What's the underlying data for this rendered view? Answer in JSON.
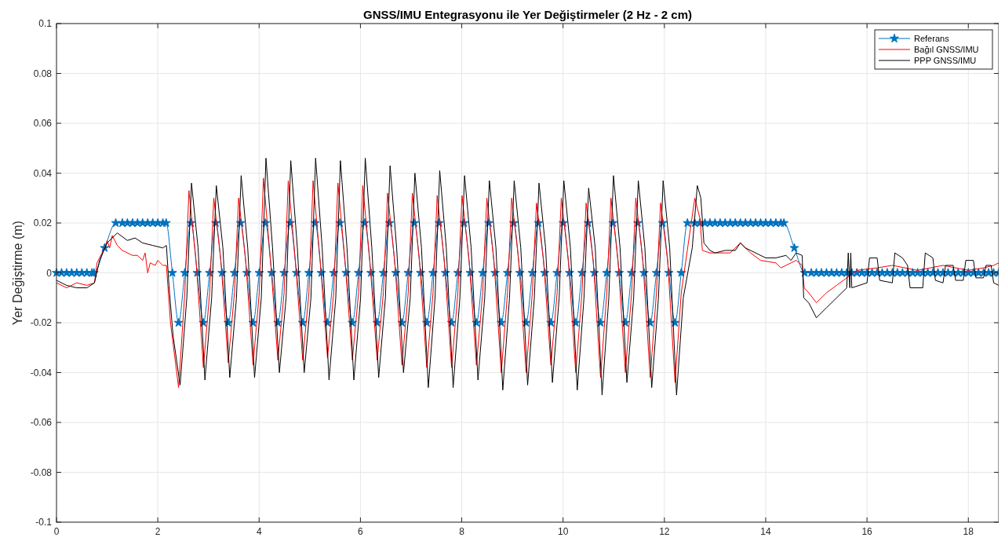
{
  "chart_data": {
    "type": "line",
    "title": "GNSS/IMU Entegrasyonu ile Yer Değiştirmeler (2 Hz - 2 cm)",
    "ylabel": "Yer Değiştirme (m)",
    "xlim": [
      0,
      18.6
    ],
    "ylim": [
      -0.1,
      0.1
    ],
    "xticks": [
      0,
      2,
      4,
      6,
      8,
      10,
      12,
      14,
      16,
      18
    ],
    "yticks": [
      -0.1,
      -0.08,
      -0.06,
      -0.04,
      -0.02,
      0,
      0.02,
      0.04,
      0.06,
      0.08,
      0.1
    ],
    "grid": true,
    "legend": "top right",
    "series": [
      {
        "name": "Referans",
        "color": "#0072bd",
        "marker": "star",
        "x": [
          0,
          0.1,
          0.2,
          0.3,
          0.4,
          0.5,
          0.6,
          0.7,
          0.74,
          0.95,
          1.17,
          1.3,
          1.4,
          1.5,
          1.6,
          1.7,
          1.8,
          1.9,
          2.0,
          2.1,
          2.165,
          2.288,
          2.41,
          2.533,
          2.655,
          2.778,
          2.9,
          3.023,
          3.145,
          3.268,
          3.39,
          3.513,
          3.635,
          3.758,
          3.88,
          4.003,
          4.125,
          4.248,
          4.37,
          4.493,
          4.615,
          4.738,
          4.86,
          4.983,
          5.105,
          5.228,
          5.35,
          5.473,
          5.595,
          5.718,
          5.84,
          5.963,
          6.085,
          6.208,
          6.33,
          6.453,
          6.575,
          6.698,
          6.82,
          6.943,
          7.065,
          7.188,
          7.31,
          7.433,
          7.555,
          7.678,
          7.8,
          7.923,
          8.045,
          8.168,
          8.29,
          8.413,
          8.535,
          8.658,
          8.78,
          8.903,
          9.025,
          9.148,
          9.27,
          9.393,
          9.515,
          9.638,
          9.76,
          9.883,
          10.005,
          10.128,
          10.25,
          10.373,
          10.495,
          10.618,
          10.74,
          10.863,
          10.985,
          11.108,
          11.23,
          11.353,
          11.475,
          11.598,
          11.72,
          11.843,
          11.965,
          12.088,
          12.21,
          12.333,
          12.455,
          12.6,
          12.7,
          12.8,
          12.9,
          13.0,
          13.1,
          13.2,
          13.3,
          13.4,
          13.5,
          13.6,
          13.7,
          13.8,
          13.9,
          14.0,
          14.1,
          14.2,
          14.3,
          14.36,
          14.565,
          14.77,
          14.9,
          15.0,
          15.1,
          15.2,
          15.3,
          15.4,
          15.5,
          15.6,
          15.7,
          15.8,
          15.9,
          16.0,
          16.1,
          16.2,
          16.3,
          16.4,
          16.5,
          16.6,
          16.7,
          16.8,
          16.9,
          17.0,
          17.1,
          17.2,
          17.3,
          17.4,
          17.5,
          17.6,
          17.7,
          17.8,
          17.9,
          18.0,
          18.1,
          18.2,
          18.3,
          18.4,
          18.5,
          18.6
        ],
        "values": [
          0,
          0,
          0,
          0,
          0,
          0,
          0,
          0,
          0,
          0.01,
          0.02,
          0.02,
          0.02,
          0.02,
          0.02,
          0.02,
          0.02,
          0.02,
          0.02,
          0.02,
          0.02,
          0,
          -0.02,
          0,
          0.02,
          0,
          -0.02,
          0,
          0.02,
          0,
          -0.02,
          0,
          0.02,
          0,
          -0.02,
          0,
          0.02,
          0,
          -0.02,
          0,
          0.02,
          0,
          -0.02,
          0,
          0.02,
          0,
          -0.02,
          0,
          0.02,
          0,
          -0.02,
          0,
          0.02,
          0,
          -0.02,
          0,
          0.02,
          0,
          -0.02,
          0,
          0.02,
          0,
          -0.02,
          0,
          0.02,
          0,
          -0.02,
          0,
          0.02,
          0,
          -0.02,
          0,
          0.02,
          0,
          -0.02,
          0,
          0.02,
          0,
          -0.02,
          0,
          0.02,
          0,
          -0.02,
          0,
          0.02,
          0,
          -0.02,
          0,
          0.02,
          0,
          -0.02,
          0,
          0.02,
          0,
          -0.02,
          0,
          0.02,
          0,
          -0.02,
          0,
          0.02,
          0,
          -0.02,
          0,
          0.02,
          0.02,
          0.02,
          0.02,
          0.02,
          0.02,
          0.02,
          0.02,
          0.02,
          0.02,
          0.02,
          0.02,
          0.02,
          0.02,
          0.02,
          0.02,
          0.02,
          0.02,
          0.02,
          0.02,
          0.01,
          0,
          0,
          0,
          0,
          0,
          0,
          0,
          0,
          0,
          0,
          0,
          0,
          0,
          0,
          0,
          0,
          0,
          0,
          0,
          0,
          0,
          0,
          0,
          0,
          0,
          0,
          0,
          0,
          0,
          0,
          0,
          0,
          0,
          0,
          0,
          0,
          0,
          0,
          0
        ]
      },
      {
        "name": "Bağıl GNSS/IMU",
        "color": "#ff0000",
        "x": [
          0,
          0.2,
          0.4,
          0.6,
          0.75,
          0.8,
          0.95,
          1.0,
          1.05,
          1.1,
          1.2,
          1.3,
          1.5,
          1.6,
          1.7,
          1.75,
          1.8,
          1.85,
          1.95,
          2.0,
          2.1,
          2.17,
          2.25,
          2.41,
          2.533,
          2.615,
          2.755,
          2.9,
          3.023,
          3.105,
          3.245,
          3.39,
          3.513,
          3.595,
          3.735,
          3.88,
          4.003,
          4.085,
          4.225,
          4.37,
          4.493,
          4.575,
          4.715,
          4.86,
          4.983,
          5.065,
          5.205,
          5.35,
          5.473,
          5.555,
          5.695,
          5.84,
          5.963,
          6.045,
          6.185,
          6.33,
          6.453,
          6.535,
          6.675,
          6.82,
          6.943,
          7.025,
          7.165,
          7.31,
          7.433,
          7.515,
          7.655,
          7.8,
          7.923,
          8.005,
          8.145,
          8.29,
          8.413,
          8.495,
          8.635,
          8.78,
          8.903,
          8.985,
          9.125,
          9.27,
          9.393,
          9.475,
          9.615,
          9.76,
          9.883,
          9.965,
          10.105,
          10.25,
          10.373,
          10.455,
          10.595,
          10.74,
          10.863,
          10.945,
          11.085,
          11.23,
          11.353,
          11.435,
          11.575,
          11.72,
          11.843,
          11.925,
          12.065,
          12.21,
          12.333,
          12.6,
          12.7,
          12.75,
          12.9,
          13.0,
          13.3,
          13.5,
          13.7,
          13.9,
          14.2,
          14.3,
          14.5,
          14.6,
          14.72,
          14.76,
          14.85,
          15.0,
          15.2,
          15.4,
          15.6,
          15.8,
          16.2,
          16.5,
          17.0,
          17.5,
          18.0,
          18.3,
          18.5,
          18.6
        ],
        "values": [
          -0.004,
          -0.006,
          -0.004,
          -0.005,
          -0.004,
          0.004,
          0.01,
          0.013,
          0.01,
          0.015,
          0.011,
          0.009,
          0.007,
          0.007,
          0.005,
          0.008,
          0,
          0.004,
          0.003,
          0.005,
          0.003,
          0.003,
          -0.02,
          -0.046,
          -0.008,
          0.033,
          0.005,
          -0.038,
          -0.008,
          0.03,
          0.005,
          -0.036,
          -0.008,
          0.03,
          0.005,
          -0.037,
          -0.008,
          0.038,
          0.005,
          -0.035,
          -0.008,
          0.037,
          0.005,
          -0.035,
          -0.008,
          0.037,
          0.005,
          -0.034,
          -0.008,
          0.036,
          0.005,
          -0.035,
          -0.008,
          0.035,
          0.005,
          -0.035,
          -0.008,
          0.032,
          0.005,
          -0.037,
          -0.008,
          0.032,
          0.005,
          -0.038,
          -0.008,
          0.031,
          0.005,
          -0.038,
          -0.008,
          0.031,
          0.005,
          -0.037,
          -0.008,
          0.03,
          0.005,
          -0.04,
          -0.008,
          0.03,
          0.005,
          -0.04,
          -0.008,
          0.028,
          0.005,
          -0.037,
          -0.008,
          0.03,
          0.005,
          -0.04,
          -0.008,
          0.028,
          0.005,
          -0.042,
          -0.008,
          0.03,
          0.005,
          -0.04,
          -0.008,
          0.03,
          0.005,
          -0.042,
          -0.008,
          0.028,
          0.005,
          -0.044,
          -0.008,
          0.03,
          0.022,
          0.009,
          0.008,
          0.008,
          0.008,
          0.012,
          0.008,
          0.005,
          0.004,
          0.002,
          0.004,
          0.005,
          0.003,
          -0.006,
          -0.008,
          -0.012,
          -0.008,
          -0.005,
          -0.002,
          0.001,
          0.002,
          0.003,
          0.001,
          0.003,
          0.001,
          0.002,
          0.003,
          0.004
        ]
      },
      {
        "name": "PPP GNSS/IMU",
        "color": "#000000",
        "x": [
          0,
          0.2,
          0.4,
          0.6,
          0.75,
          0.85,
          1.0,
          1.2,
          1.4,
          1.55,
          1.7,
          1.9,
          2.1,
          2.17,
          2.22,
          2.3,
          2.44,
          2.573,
          2.665,
          2.795,
          2.93,
          3.063,
          3.155,
          3.285,
          3.42,
          3.553,
          3.645,
          3.775,
          3.91,
          4.043,
          4.135,
          4.265,
          4.4,
          4.533,
          4.625,
          4.755,
          4.89,
          5.023,
          5.115,
          5.245,
          5.38,
          5.513,
          5.605,
          5.735,
          5.87,
          6.003,
          6.095,
          6.225,
          6.36,
          6.493,
          6.585,
          6.715,
          6.85,
          6.983,
          7.075,
          7.205,
          7.34,
          7.473,
          7.565,
          7.695,
          7.83,
          7.963,
          8.055,
          8.185,
          8.32,
          8.453,
          8.545,
          8.675,
          8.81,
          8.943,
          9.035,
          9.165,
          9.3,
          9.433,
          9.525,
          9.655,
          9.79,
          9.923,
          10.015,
          10.145,
          10.28,
          10.413,
          10.505,
          10.635,
          10.77,
          10.903,
          10.995,
          11.125,
          11.26,
          11.393,
          11.485,
          11.615,
          11.75,
          11.883,
          11.975,
          12.105,
          12.24,
          12.373,
          12.55,
          12.65,
          12.72,
          12.78,
          12.9,
          13.0,
          13.2,
          13.4,
          13.5,
          13.6,
          13.8,
          14.0,
          14.2,
          14.4,
          14.5,
          14.6,
          14.72,
          14.75,
          14.85,
          15.0,
          15.1,
          15.2,
          15.4,
          15.6,
          15.63,
          15.66,
          15.68,
          15.7,
          16.0,
          16.05,
          16.2,
          16.25,
          16.5,
          16.55,
          16.7,
          16.8,
          16.85,
          17.1,
          17.15,
          17.3,
          17.35,
          17.5,
          17.55,
          17.7,
          17.75,
          17.9,
          17.95,
          18.1,
          18.15,
          18.3,
          18.35,
          18.45,
          18.5,
          18.6
        ],
        "values": [
          -0.003,
          -0.005,
          -0.006,
          -0.006,
          -0.004,
          0.005,
          0.012,
          0.016,
          0.013,
          0.014,
          0.012,
          0.011,
          0.01,
          0.011,
          -0.005,
          -0.025,
          -0.045,
          -0.01,
          0.036,
          0.01,
          -0.043,
          -0.01,
          0.035,
          0.01,
          -0.042,
          -0.01,
          0.039,
          0.01,
          -0.042,
          -0.01,
          0.046,
          0.01,
          -0.04,
          -0.01,
          0.045,
          0.01,
          -0.04,
          -0.01,
          0.046,
          0.01,
          -0.043,
          -0.01,
          0.045,
          0.01,
          -0.043,
          -0.01,
          0.046,
          0.01,
          -0.042,
          -0.01,
          0.043,
          0.01,
          -0.04,
          -0.01,
          0.04,
          0.01,
          -0.046,
          -0.01,
          0.041,
          0.01,
          -0.046,
          -0.01,
          0.039,
          0.01,
          -0.043,
          -0.01,
          0.037,
          0.01,
          -0.047,
          -0.01,
          0.037,
          0.01,
          -0.045,
          -0.01,
          0.036,
          0.01,
          -0.044,
          -0.01,
          0.037,
          0.01,
          -0.047,
          -0.01,
          0.034,
          0.01,
          -0.049,
          -0.01,
          0.039,
          0.01,
          -0.044,
          -0.01,
          0.037,
          0.01,
          -0.046,
          -0.01,
          0.037,
          0.01,
          -0.049,
          -0.01,
          0.01,
          0.035,
          0.03,
          0.012,
          0.009,
          0.008,
          0.009,
          0.009,
          0.012,
          0.01,
          0.008,
          0.006,
          0.006,
          0.007,
          0.005,
          0.008,
          0.007,
          -0.01,
          -0.012,
          -0.018,
          -0.016,
          -0.014,
          -0.01,
          -0.006,
          0.008,
          -0.006,
          0.008,
          -0.006,
          -0.004,
          0.006,
          0.006,
          -0.003,
          -0.004,
          0.008,
          0.006,
          0.003,
          -0.006,
          -0.006,
          0.008,
          0.006,
          -0.003,
          -0.004,
          0.003,
          0.003,
          -0.003,
          -0.003,
          0.005,
          0.005,
          -0.002,
          -0.002,
          0.003,
          0.003,
          -0.004,
          -0.005
        ]
      }
    ]
  }
}
